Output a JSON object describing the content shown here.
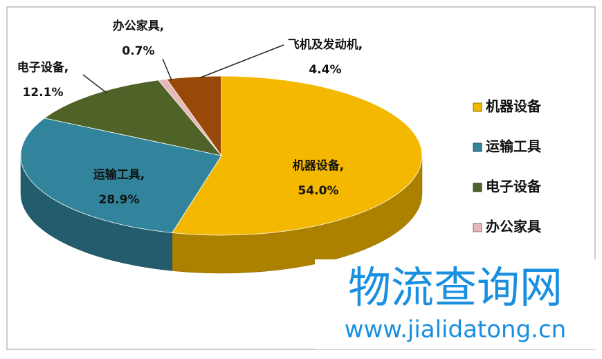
{
  "chart_data": {
    "type": "pie3d",
    "categories": [
      "机器设备",
      "运输工具",
      "电子设备",
      "办公家具",
      "飞机及发动机"
    ],
    "values": [
      54.0,
      28.9,
      12.1,
      0.7,
      4.4
    ],
    "data_labels": [
      "机器设备,",
      "运输工具,",
      "电子设备,",
      "办公家具,",
      "飞机及发动机,"
    ],
    "value_labels": [
      "54.0%",
      "28.9%",
      "12.1%",
      "0.7%",
      "4.4%"
    ],
    "colors": [
      "#f5b800",
      "#31849b",
      "#4f6228",
      "#e6b9b8",
      "#984807"
    ],
    "legend": "right"
  },
  "watermark": {
    "title": "物流查询网",
    "url": "www.jialidatong.cn"
  }
}
